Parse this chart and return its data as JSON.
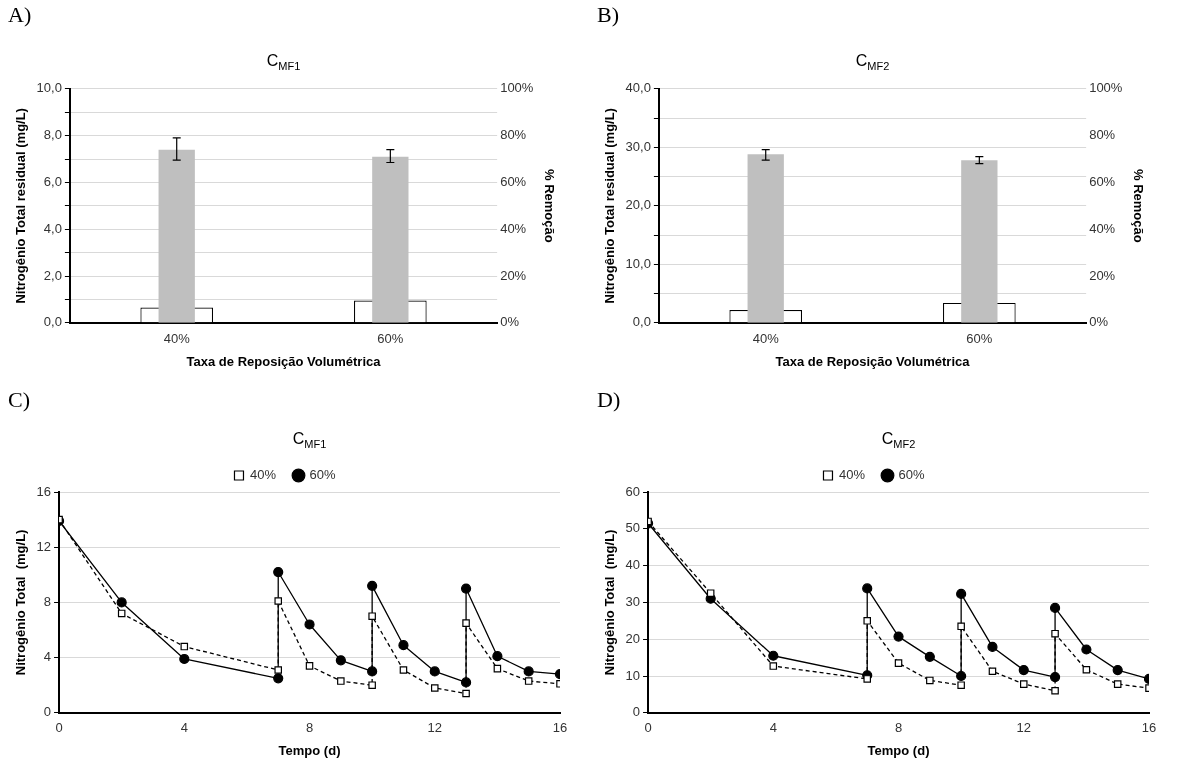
{
  "chart_data": [
    {
      "type": "bar",
      "title": "C$_{MF1}$",
      "annotations": [
        "A)"
      ],
      "categories": [
        "40%",
        "60%"
      ],
      "xlabel": "Taxa de Reposição Volumétrica",
      "ylabel": "Nitrogênio Total residual (mg/L)",
      "y2label": "% Remoção",
      "ylim": [
        0,
        10
      ],
      "yticks": [
        {
          "value": 0,
          "label": "0,0"
        },
        {
          "value": 1,
          "label": null
        },
        {
          "value": 2,
          "label": "2,0"
        },
        {
          "value": 3,
          "label": null
        },
        {
          "value": 4,
          "label": "4,0"
        },
        {
          "value": 5,
          "label": null
        },
        {
          "value": 6,
          "label": "6,0"
        },
        {
          "value": 7,
          "label": null
        },
        {
          "value": 8,
          "label": "8,0"
        },
        {
          "value": 9,
          "label": null
        },
        {
          "value": 10,
          "label": "10,0"
        }
      ],
      "y2lim": [
        0,
        100
      ],
      "y2ticks": [
        {
          "value": 0,
          "label": "0%"
        },
        {
          "value": 20,
          "label": "20%"
        },
        {
          "value": 40,
          "label": "40%"
        },
        {
          "value": 60,
          "label": "60%"
        },
        {
          "value": 80,
          "label": "80%"
        },
        {
          "value": 100,
          "label": "100%"
        }
      ],
      "grid": "y",
      "legend": false,
      "series": [
        {
          "color": "#ffffff",
          "values": [
            0.65,
            0.95
          ]
        },
        {
          "color": "#bfbfbf",
          "axis": "y2",
          "values": [
            74,
            71
          ],
          "errors": [
            [
              69.5,
              79
            ],
            [
              68.5,
              74
            ]
          ]
        }
      ]
    },
    {
      "type": "bar",
      "title": "C$_{MF2}$",
      "annotations": [
        "B)"
      ],
      "categories": [
        "40%",
        "60%"
      ],
      "xlabel": "Taxa de Reposição Volumétrica",
      "ylabel": "Nitrogênio Total residual (mg/L)",
      "y2label": "% Remoção",
      "ylim": [
        0,
        40
      ],
      "yticks": [
        {
          "value": 0,
          "label": "0,0"
        },
        {
          "value": 5,
          "label": null
        },
        {
          "value": 10,
          "label": "10,0"
        },
        {
          "value": 15,
          "label": null
        },
        {
          "value": 20,
          "label": "20,0"
        },
        {
          "value": 25,
          "label": null
        },
        {
          "value": 30,
          "label": "30,0"
        },
        {
          "value": 35,
          "label": null
        },
        {
          "value": 40,
          "label": "40,0"
        }
      ],
      "y2lim": [
        0,
        100
      ],
      "y2ticks": [
        {
          "value": 0,
          "label": "0%"
        },
        {
          "value": 20,
          "label": "20%"
        },
        {
          "value": 40,
          "label": "40%"
        },
        {
          "value": 60,
          "label": "60%"
        },
        {
          "value": 80,
          "label": "80%"
        },
        {
          "value": 100,
          "label": "100%"
        }
      ],
      "grid": "y",
      "legend": false,
      "series": [
        {
          "color": "#ffffff",
          "values": [
            2.2,
            3.4
          ]
        },
        {
          "color": "#bfbfbf",
          "axis": "y2",
          "values": [
            72,
            69.5
          ],
          "errors": [
            [
              69.5,
              74
            ],
            [
              68,
              71
            ]
          ]
        }
      ]
    },
    {
      "type": "line",
      "title": "C$_{MF1}$",
      "annotations": [
        "C)"
      ],
      "xlabel": "Tempo (d)",
      "ylabel": "Nitrogênio Total  (mg/L)",
      "x": [
        0,
        2,
        4,
        7,
        7,
        8,
        9,
        10,
        10,
        11,
        12,
        13,
        13,
        14,
        15,
        16
      ],
      "xlim": [
        0,
        16
      ],
      "xticks": [
        0,
        4,
        8,
        12,
        16
      ],
      "ylim": [
        0,
        16
      ],
      "yticks": [
        0,
        4,
        8,
        12,
        16
      ],
      "grid": "y",
      "legend": "top",
      "series": [
        {
          "name": "40%",
          "color": "#000000",
          "marker": "square",
          "line_style": "dashed",
          "values": [
            14.0,
            7.2,
            4.8,
            3.1,
            8.1,
            3.4,
            2.3,
            2.0,
            7.0,
            3.1,
            1.8,
            1.4,
            6.5,
            3.2,
            2.3,
            2.1
          ]
        },
        {
          "name": "60%",
          "color": "#000000",
          "marker": "circle",
          "line_style": "solid",
          "values": [
            13.9,
            8.0,
            3.9,
            2.5,
            10.2,
            6.4,
            3.8,
            3.0,
            9.2,
            4.9,
            3.0,
            2.2,
            9.0,
            4.1,
            3.0,
            2.8
          ]
        }
      ]
    },
    {
      "type": "line",
      "title": "C$_{MF2}$",
      "annotations": [
        "D)"
      ],
      "xlabel": "Tempo (d)",
      "ylabel": "Nitrogênio Total  (mg/L)",
      "x": [
        0,
        2,
        4,
        7,
        7,
        8,
        9,
        10,
        10,
        11,
        12,
        13,
        13,
        14,
        15,
        16
      ],
      "xlim": [
        0,
        16
      ],
      "xticks": [
        0,
        4,
        8,
        12,
        16
      ],
      "ylim": [
        0,
        60
      ],
      "yticks": [
        0,
        10,
        20,
        30,
        40,
        50,
        60
      ],
      "grid": "y",
      "legend": "top",
      "series": [
        {
          "name": "40%",
          "color": "#000000",
          "marker": "square",
          "line_style": "dashed",
          "values": [
            52,
            32.5,
            12.7,
            9.2,
            25,
            13.5,
            8.8,
            7.5,
            23.5,
            11.3,
            7.8,
            6.0,
            21.5,
            11.7,
            7.8,
            6.7
          ]
        },
        {
          "name": "60%",
          "color": "#000000",
          "marker": "circle",
          "line_style": "solid",
          "values": [
            51.5,
            31,
            15.5,
            10.2,
            33.8,
            20.7,
            15.2,
            10.0,
            32.3,
            17.9,
            11.6,
            9.7,
            28.5,
            17.2,
            11.6,
            9.2
          ]
        }
      ]
    }
  ]
}
